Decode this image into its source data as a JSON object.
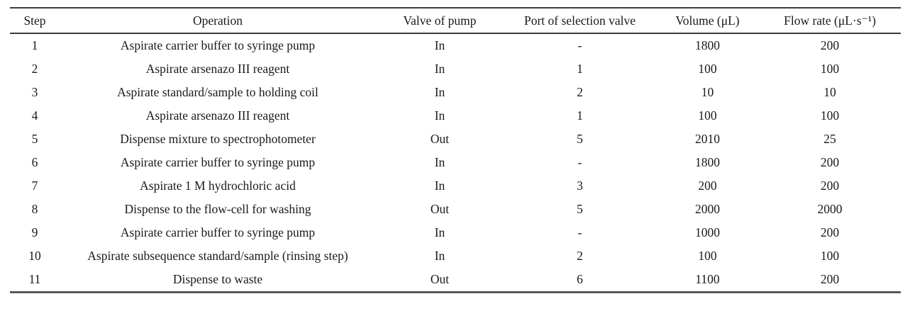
{
  "table": {
    "columns": [
      "Step",
      "Operation",
      "Valve of pump",
      "Port of selection valve",
      "Volume (μL)",
      "Flow rate (μL·s⁻¹)"
    ],
    "column_keys": [
      "step",
      "operation",
      "valve-of-pump",
      "port-of-selection-valve",
      "volume",
      "flow-rate"
    ],
    "rows": [
      [
        "1",
        "Aspirate carrier buffer to syringe pump",
        "In",
        "-",
        "1800",
        "200"
      ],
      [
        "2",
        "Aspirate arsenazo III reagent",
        "In",
        "1",
        "100",
        "100"
      ],
      [
        "3",
        "Aspirate standard/sample to holding coil",
        "In",
        "2",
        "10",
        "10"
      ],
      [
        "4",
        "Aspirate arsenazo III reagent",
        "In",
        "1",
        "100",
        "100"
      ],
      [
        "5",
        "Dispense mixture to spectrophotometer",
        "Out",
        "5",
        "2010",
        "25"
      ],
      [
        "6",
        "Aspirate carrier buffer to syringe pump",
        "In",
        "-",
        "1800",
        "200"
      ],
      [
        "7",
        "Aspirate 1 M hydrochloric acid",
        "In",
        "3",
        "200",
        "200"
      ],
      [
        "8",
        "Dispense to the flow-cell for washing",
        "Out",
        "5",
        "2000",
        "2000"
      ],
      [
        "9",
        "Aspirate carrier buffer to syringe pump",
        "In",
        "-",
        "1000",
        "200"
      ],
      [
        "10",
        "Aspirate subsequence standard/sample (rinsing step)",
        "In",
        "2",
        "100",
        "100"
      ],
      [
        "11",
        "Dispense to waste",
        "Out",
        "6",
        "1100",
        "200"
      ]
    ]
  }
}
